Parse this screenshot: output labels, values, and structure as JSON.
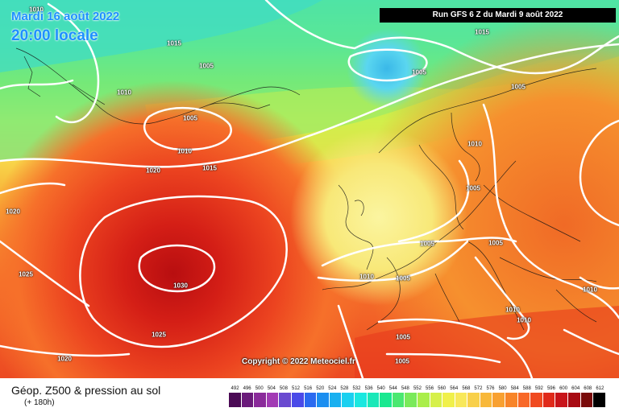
{
  "header": {
    "date": "Mardi 16 août 2022",
    "local_time": "20:00 locale",
    "run": "Run GFS 6 Z du Mardi 9 août 2022"
  },
  "copyright": "Copyright © 2022 Meteociel.fr",
  "footer": {
    "title": "Géop. Z500 & pression au sol",
    "subtitle": "(+ 180h)"
  },
  "legend": {
    "ticks": [
      "492",
      "496",
      "500",
      "504",
      "508",
      "512",
      "516",
      "520",
      "524",
      "528",
      "532",
      "536",
      "540",
      "544",
      "548",
      "552",
      "556",
      "560",
      "564",
      "568",
      "572",
      "576",
      "580",
      "584",
      "588",
      "592",
      "596",
      "600",
      "604",
      "608",
      "612"
    ],
    "colors": [
      "#4b0a55",
      "#6a1a7a",
      "#8a2a9a",
      "#a23ab4",
      "#6a4ad0",
      "#4a4ae8",
      "#2a6af0",
      "#1a8ef0",
      "#1ab0f0",
      "#1ad0f0",
      "#1ae8e0",
      "#1ae8b8",
      "#1ae890",
      "#4ae870",
      "#7aea5a",
      "#aaee4a",
      "#d6f04a",
      "#f0f04a",
      "#f8e85a",
      "#f8d04a",
      "#f8b83a",
      "#f8a030",
      "#f88428",
      "#f86828",
      "#f04a20",
      "#e02a1a",
      "#c8141a",
      "#a80a12",
      "#7a0a0a",
      "#000000"
    ]
  },
  "isobars": [
    {
      "value": "1010",
      "id": "a"
    },
    {
      "value": "1015",
      "id": "b"
    },
    {
      "value": "1015",
      "id": "c"
    },
    {
      "value": "1005",
      "id": "d"
    },
    {
      "value": "1010",
      "id": "e"
    },
    {
      "value": "1005",
      "id": "f"
    },
    {
      "value": "1010",
      "id": "g"
    },
    {
      "value": "1020",
      "id": "h"
    },
    {
      "value": "1015",
      "id": "i"
    },
    {
      "value": "1005",
      "id": "j"
    },
    {
      "value": "1005",
      "id": "k"
    },
    {
      "value": "1010",
      "id": "l"
    },
    {
      "value": "1005",
      "id": "m"
    },
    {
      "value": "1020",
      "id": "n"
    },
    {
      "value": "1005",
      "id": "o"
    },
    {
      "value": "1005",
      "id": "p"
    },
    {
      "value": "1025",
      "id": "q"
    },
    {
      "value": "1030",
      "id": "r"
    },
    {
      "value": "1010",
      "id": "s"
    },
    {
      "value": "1005",
      "id": "t"
    },
    {
      "value": "1010",
      "id": "u"
    },
    {
      "value": "1010",
      "id": "v"
    },
    {
      "value": "1010",
      "id": "w"
    },
    {
      "value": "1025",
      "id": "x"
    },
    {
      "value": "1005",
      "id": "y"
    },
    {
      "value": "1020",
      "id": "z"
    },
    {
      "value": "1005",
      "id": "aa"
    }
  ],
  "icons": [
    "weather-map"
  ]
}
